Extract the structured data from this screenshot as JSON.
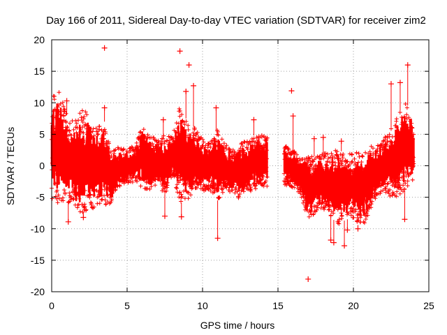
{
  "chart_data": {
    "type": "scatter",
    "title": "Day 166 of 2011, Sidereal Day-to-day VTEC variation (SDTVAR) for receiver zim2",
    "xlabel": "GPS time / hours",
    "ylabel": "SDTVAR / TECUs",
    "xlim": [
      0,
      25
    ],
    "ylim": [
      -20,
      20
    ],
    "x_ticks": [
      0,
      5,
      10,
      15,
      20,
      25
    ],
    "y_ticks": [
      -20,
      -15,
      -10,
      -5,
      0,
      5,
      10,
      15,
      20
    ],
    "x_tick_labels": [
      "0",
      "5",
      "10",
      "15",
      "20",
      "25"
    ],
    "y_tick_labels": [
      "-20",
      "-15",
      "-10",
      "-5",
      "0",
      "5",
      "10",
      "15",
      "20"
    ],
    "grid": true,
    "marker": "+",
    "series_color": "#ff0000",
    "data_gap_hours": [
      14.3,
      15.4
    ],
    "envelope": {
      "x": [
        0.0,
        0.5,
        1.0,
        1.5,
        2.0,
        2.5,
        3.0,
        3.5,
        4.0,
        4.5,
        5.0,
        5.5,
        6.0,
        6.5,
        7.0,
        7.5,
        8.0,
        8.5,
        9.0,
        9.5,
        10.0,
        10.5,
        11.0,
        11.5,
        12.0,
        12.5,
        13.0,
        13.5,
        14.0,
        14.3,
        15.4,
        16.0,
        16.5,
        17.0,
        17.5,
        18.0,
        18.5,
        19.0,
        19.5,
        20.0,
        20.5,
        21.0,
        21.5,
        22.0,
        22.5,
        23.0,
        23.5,
        24.0
      ],
      "y_high": [
        11.0,
        12.0,
        8.0,
        7.0,
        9.0,
        8.5,
        6.0,
        7.0,
        2.5,
        3.0,
        3.0,
        3.0,
        6.5,
        5.0,
        4.0,
        5.0,
        4.5,
        9.5,
        7.0,
        6.0,
        4.5,
        3.5,
        6.0,
        3.5,
        2.5,
        4.0,
        4.0,
        5.0,
        5.0,
        5.0,
        3.5,
        2.5,
        1.5,
        1.5,
        1.5,
        2.0,
        2.5,
        2.5,
        2.0,
        2.0,
        2.5,
        3.0,
        3.5,
        4.5,
        6.0,
        8.5,
        10.0,
        8.0
      ],
      "y_low": [
        -5.5,
        -6.0,
        -5.5,
        -7.0,
        -7.5,
        -7.0,
        -6.5,
        -6.5,
        -6.0,
        -3.5,
        -3.0,
        -2.5,
        -3.5,
        -4.0,
        -3.0,
        -4.5,
        -2.0,
        -6.0,
        -5.5,
        -4.0,
        -4.0,
        -4.0,
        -5.5,
        -4.0,
        -4.5,
        -5.5,
        -4.0,
        -4.0,
        -3.5,
        -3.5,
        -3.0,
        -3.5,
        -4.5,
        -9.0,
        -7.5,
        -7.0,
        -8.0,
        -9.5,
        -8.5,
        -8.5,
        -10.0,
        -8.0,
        -5.0,
        -4.0,
        -5.0,
        -5.5,
        -3.5,
        -2.5
      ]
    },
    "outliers": [
      {
        "x": 3.5,
        "y": 18.7
      },
      {
        "x": 8.5,
        "y": 18.2
      },
      {
        "x": 9.1,
        "y": 16.0
      },
      {
        "x": 9.4,
        "y": 12.7
      },
      {
        "x": 8.9,
        "y": 11.8
      },
      {
        "x": 23.6,
        "y": 16.0
      },
      {
        "x": 22.5,
        "y": 13.0
      },
      {
        "x": 23.1,
        "y": 13.2
      },
      {
        "x": 15.9,
        "y": 11.9
      },
      {
        "x": 1.0,
        "y": 10.3
      },
      {
        "x": 3.5,
        "y": 9.2
      },
      {
        "x": 10.9,
        "y": 9.2
      },
      {
        "x": 16.0,
        "y": 7.9
      },
      {
        "x": 1.1,
        "y": -8.9
      },
      {
        "x": 2.1,
        "y": -8.2
      },
      {
        "x": 8.6,
        "y": -8.1
      },
      {
        "x": 7.5,
        "y": -8.0
      },
      {
        "x": 11.0,
        "y": -11.5
      },
      {
        "x": 17.0,
        "y": -18.0
      },
      {
        "x": 19.4,
        "y": -12.7
      },
      {
        "x": 18.7,
        "y": -12.2
      },
      {
        "x": 18.5,
        "y": -11.8
      },
      {
        "x": 20.3,
        "y": -10.0
      },
      {
        "x": 19.6,
        "y": -10.2
      },
      {
        "x": 23.4,
        "y": -8.5
      },
      {
        "x": 19.2,
        "y": 3.9
      },
      {
        "x": 18.0,
        "y": 4.5
      },
      {
        "x": 17.4,
        "y": 4.3
      },
      {
        "x": 13.4,
        "y": 7.3
      },
      {
        "x": 7.4,
        "y": 7.3
      }
    ]
  }
}
